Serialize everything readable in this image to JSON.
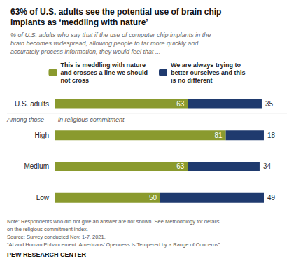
{
  "chart_data": {
    "type": "bar",
    "orientation": "horizontal",
    "stacked": true,
    "title": "63% of U.S. adults see the potential use of brain chip\nimplants as ‘meddling with nature’",
    "subtitle": "% of U.S. adults who say that if the use of computer chip implants in the\nbrain becomes widespread, allowing people to far more quickly and\naccurately process information, they would feel that ...",
    "categories": [
      "U.S. adults",
      "High",
      "Medium",
      "Low"
    ],
    "series": [
      {
        "name": "This is meddling with nature\nand crosses a line we should\nnot cross",
        "color": "#8a9a2e",
        "values": [
          63,
          81,
          63,
          50
        ]
      },
      {
        "name": "We are always trying to\nbetter ourselves and this\nis no different",
        "color": "#1f3a6e",
        "values": [
          35,
          18,
          34,
          49
        ]
      }
    ],
    "xlim": [
      0,
      100
    ],
    "tick_labels": "y",
    "data_labels": true,
    "grid": false,
    "legend": "top",
    "annotations": [
      "Among those ___ in religious commitment"
    ],
    "footnotes": [
      "Note: Respondents who did not give an answer are not shown. See Methodology for details",
      "on the religious commitment index.",
      "Source: Survey conducted Nov. 1-7, 2021.",
      "“AI and Human Enhancement: Americans’ Openness Is Tempered by a Range of Concerns”",
      "PEW RESEARCH CENTER"
    ]
  }
}
